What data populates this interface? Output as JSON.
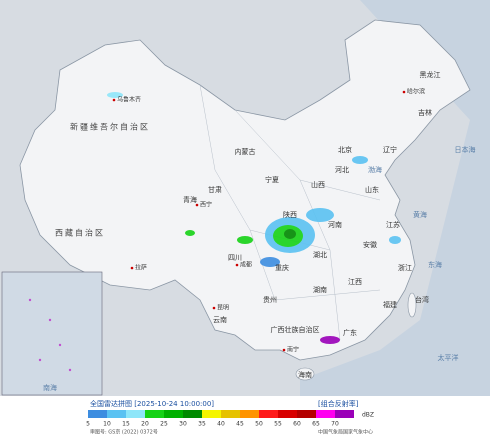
{
  "map": {
    "labels": [
      "新疆维吾尔自治区",
      "西藏自治区",
      "青海",
      "甘肃",
      "内蒙古",
      "黑龙江",
      "吉林",
      "辽宁",
      "北京",
      "河北",
      "山西",
      "陕西",
      "宁夏",
      "四川",
      "重庆",
      "湖北",
      "湖南",
      "河南",
      "山东",
      "江苏",
      "安徽",
      "浙江",
      "江西",
      "福建",
      "广东",
      "广西壮族自治区",
      "贵州",
      "云南",
      "海南",
      "台湾"
    ],
    "cities": [
      "乌鲁木齐",
      "拉萨",
      "成都",
      "昆明",
      "南宁",
      "哈尔滨",
      "西宁"
    ],
    "seas": [
      "渤海",
      "黄海",
      "东海",
      "日本海",
      "太平洋",
      "南海"
    ]
  },
  "legend": {
    "title": "全国雷达拼图 [2025-10-24 10:00:00]",
    "product": "[组合反射率]",
    "levels": [
      5,
      10,
      15,
      20,
      25,
      30,
      35,
      40,
      45,
      50,
      55,
      60,
      65,
      70
    ],
    "colors": [
      "#3d8de0",
      "#5bc2f2",
      "#8ee6f9",
      "#16d216",
      "#00b000",
      "#008a00",
      "#f5f500",
      "#e6c200",
      "#ff9400",
      "#ff1a1a",
      "#d80000",
      "#b40000",
      "#ff00f0",
      "#9a00b8"
    ],
    "unit": "dBZ"
  },
  "footer": {
    "approval": "审图号: GS京 (2022) 0372号",
    "credit": "中国气象局国家气象中心"
  }
}
